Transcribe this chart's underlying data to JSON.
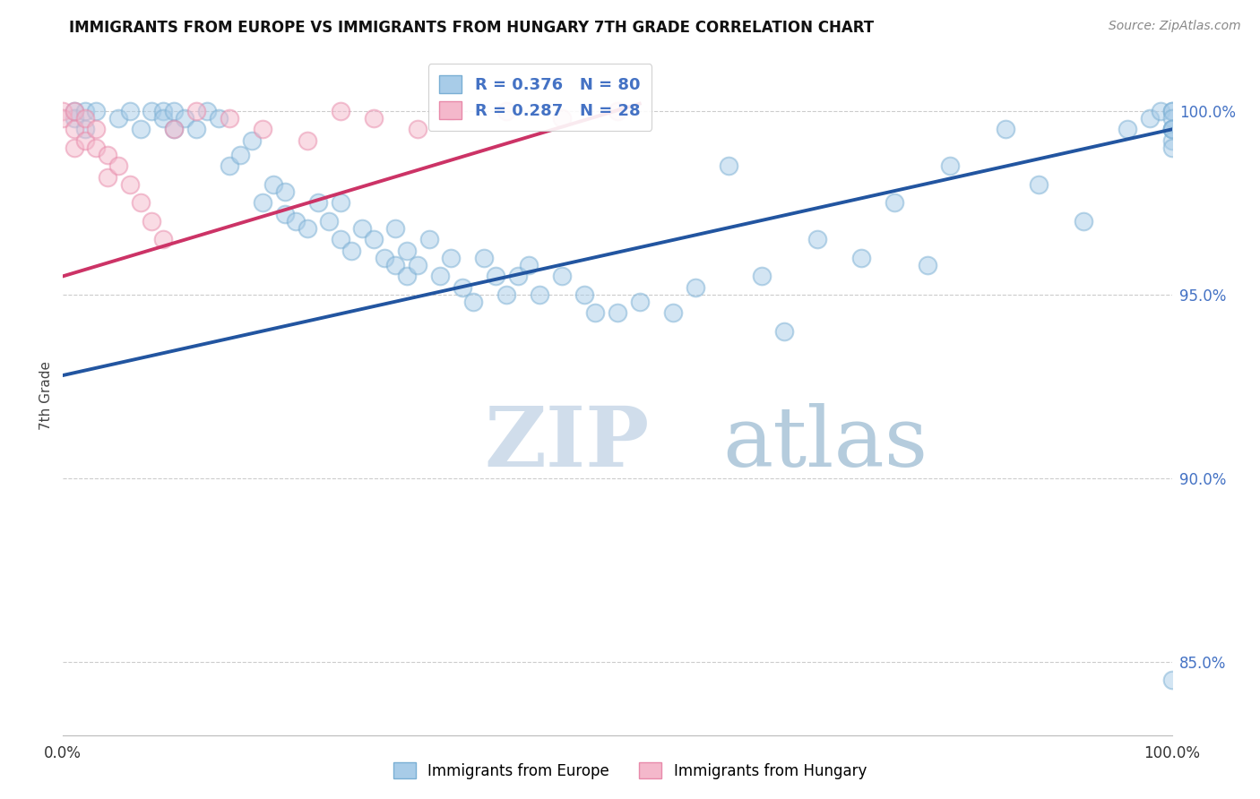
{
  "title": "IMMIGRANTS FROM EUROPE VS IMMIGRANTS FROM HUNGARY 7TH GRADE CORRELATION CHART",
  "source_text": "Source: ZipAtlas.com",
  "ylabel": "7th Grade",
  "watermark_zip": "ZIP",
  "watermark_atlas": "atlas",
  "xlim": [
    0.0,
    100.0
  ],
  "ylim": [
    83.0,
    101.5
  ],
  "right_yticks": [
    85.0,
    90.0,
    95.0,
    100.0
  ],
  "right_yticklabels": [
    "85.0%",
    "90.0%",
    "95.0%",
    "100.0%"
  ],
  "legend_label1": "Immigrants from Europe",
  "legend_label2": "Immigrants from Hungary",
  "blue_color": "#a8cce8",
  "blue_edge_color": "#7aafd4",
  "pink_color": "#f4b8cb",
  "pink_edge_color": "#e88aaa",
  "blue_line_color": "#2255a0",
  "pink_line_color": "#cc3366",
  "title_color": "#111111",
  "right_tick_color": "#4472c4",
  "grid_color": "#cccccc",
  "blue_scatter_x": [
    1,
    1,
    2,
    2,
    3,
    5,
    6,
    7,
    8,
    9,
    9,
    10,
    10,
    11,
    12,
    13,
    14,
    15,
    16,
    17,
    18,
    19,
    20,
    20,
    21,
    22,
    23,
    24,
    25,
    25,
    26,
    27,
    28,
    29,
    30,
    30,
    31,
    31,
    32,
    33,
    34,
    35,
    36,
    37,
    38,
    39,
    40,
    41,
    42,
    43,
    45,
    47,
    48,
    50,
    52,
    55,
    57,
    60,
    63,
    65,
    68,
    72,
    75,
    78,
    80,
    85,
    88,
    92,
    96,
    98,
    99,
    100,
    100,
    100,
    100,
    100,
    100,
    100,
    100,
    100
  ],
  "blue_scatter_y": [
    100.0,
    99.8,
    100.0,
    99.5,
    100.0,
    99.8,
    100.0,
    99.5,
    100.0,
    100.0,
    99.8,
    100.0,
    99.5,
    99.8,
    99.5,
    100.0,
    99.8,
    98.5,
    98.8,
    99.2,
    97.5,
    98.0,
    97.2,
    97.8,
    97.0,
    96.8,
    97.5,
    97.0,
    96.5,
    97.5,
    96.2,
    96.8,
    96.5,
    96.0,
    96.8,
    95.8,
    96.2,
    95.5,
    95.8,
    96.5,
    95.5,
    96.0,
    95.2,
    94.8,
    96.0,
    95.5,
    95.0,
    95.5,
    95.8,
    95.0,
    95.5,
    95.0,
    94.5,
    94.5,
    94.8,
    94.5,
    95.2,
    98.5,
    95.5,
    94.0,
    96.5,
    96.0,
    97.5,
    95.8,
    98.5,
    99.5,
    98.0,
    97.0,
    99.5,
    99.8,
    100.0,
    100.0,
    99.5,
    100.0,
    99.8,
    99.5,
    99.2,
    99.0,
    99.5,
    84.5
  ],
  "pink_scatter_x": [
    0,
    0,
    1,
    1,
    1,
    2,
    2,
    3,
    3,
    4,
    4,
    5,
    6,
    7,
    8,
    9,
    10,
    12,
    15,
    18,
    22,
    25,
    28,
    32,
    35,
    40,
    45,
    50
  ],
  "pink_scatter_y": [
    100.0,
    99.8,
    100.0,
    99.5,
    99.0,
    99.8,
    99.2,
    99.5,
    99.0,
    98.8,
    98.2,
    98.5,
    98.0,
    97.5,
    97.0,
    96.5,
    99.5,
    100.0,
    99.8,
    99.5,
    99.2,
    100.0,
    99.8,
    99.5,
    100.0,
    100.0,
    99.8,
    100.0
  ],
  "blue_trendline_x": [
    0,
    100
  ],
  "blue_trendline_y": [
    92.8,
    99.5
  ],
  "pink_trendline_x": [
    0,
    52
  ],
  "pink_trendline_y": [
    95.5,
    100.2
  ]
}
